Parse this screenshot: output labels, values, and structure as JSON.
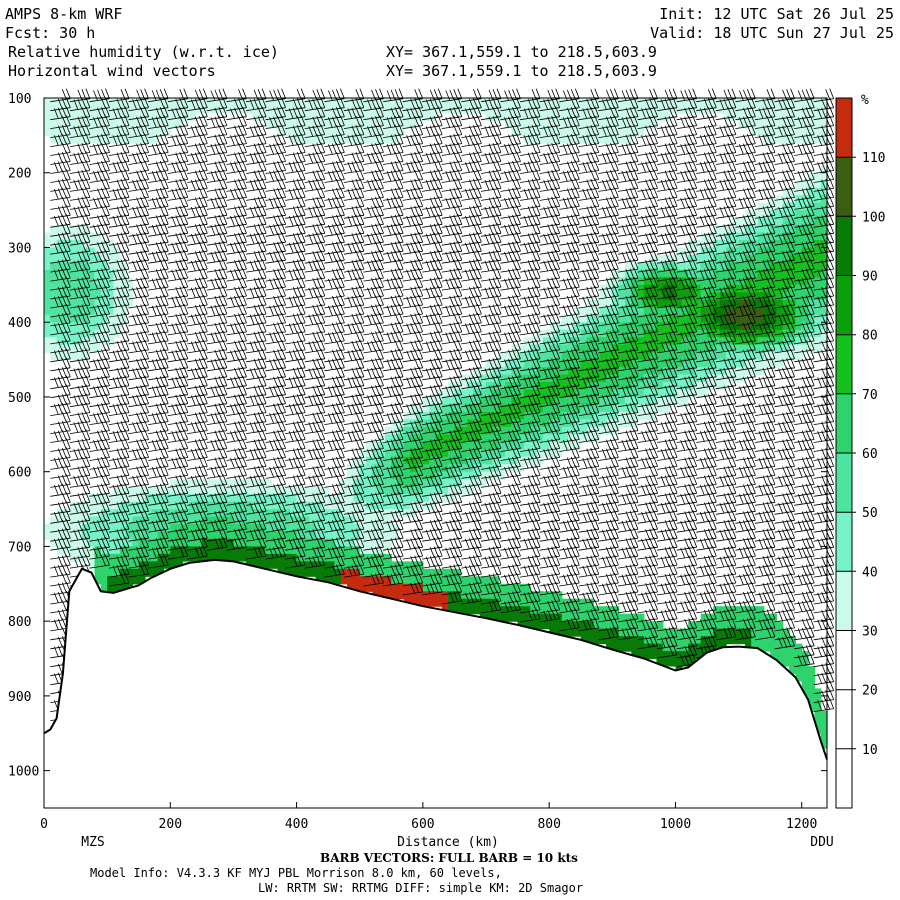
{
  "header": {
    "model": "AMPS 8-km WRF",
    "fcst": "Fcst:    30 h",
    "field1": "Relative humidity (w.r.t. ice)",
    "field2": "Horizontal wind vectors",
    "init": "Init: 12 UTC Sat 26 Jul 25",
    "valid": "Valid: 18 UTC Sun 27 Jul 25",
    "xy1": "XY= 367.1,559.1 to 218.5,603.9",
    "xy2": "XY= 367.1,559.1 to 218.5,603.9"
  },
  "chart_data": {
    "type": "heatmap",
    "title": "Relative humidity (w.r.t. ice)",
    "xlabel": "Distance (km)",
    "ylabel": "",
    "xlim": [
      0,
      1240
    ],
    "ylim": [
      1050,
      100
    ],
    "x_ticks": [
      0,
      200,
      400,
      600,
      800,
      1000,
      1200
    ],
    "y_ticks": [
      100,
      200,
      300,
      400,
      500,
      600,
      700,
      800,
      900,
      1000
    ],
    "x_endpoint_labels": [
      "MZS",
      "DDU"
    ],
    "colorbar": {
      "unit": "%",
      "boundaries": [
        0,
        10,
        20,
        30,
        40,
        50,
        60,
        70,
        80,
        90,
        100,
        110,
        120
      ],
      "labels": [
        "10",
        "20",
        "30",
        "40",
        "50",
        "60",
        "70",
        "80",
        "90",
        "100",
        "110"
      ],
      "colors": [
        "#ffffff",
        "#ffffff",
        "#ffffff",
        "#cbfbe8",
        "#76f4c7",
        "#4ee4a0",
        "#2fd36d",
        "#17c021",
        "#0d9e0d",
        "#087a08",
        "#3b5e12",
        "#c42b0f"
      ]
    },
    "terrain_surface_pressure": [
      [
        0,
        950
      ],
      [
        10,
        945
      ],
      [
        20,
        930
      ],
      [
        30,
        870
      ],
      [
        40,
        760
      ],
      [
        60,
        730
      ],
      [
        75,
        735
      ],
      [
        90,
        760
      ],
      [
        110,
        762
      ],
      [
        130,
        757
      ],
      [
        150,
        752
      ],
      [
        170,
        742
      ],
      [
        200,
        730
      ],
      [
        230,
        722
      ],
      [
        270,
        718
      ],
      [
        300,
        720
      ],
      [
        350,
        730
      ],
      [
        400,
        740
      ],
      [
        450,
        748
      ],
      [
        500,
        760
      ],
      [
        550,
        770
      ],
      [
        600,
        780
      ],
      [
        650,
        788
      ],
      [
        700,
        796
      ],
      [
        750,
        805
      ],
      [
        800,
        815
      ],
      [
        850,
        825
      ],
      [
        900,
        838
      ],
      [
        950,
        850
      ],
      [
        975,
        858
      ],
      [
        1000,
        866
      ],
      [
        1020,
        862
      ],
      [
        1050,
        842
      ],
      [
        1075,
        835
      ],
      [
        1100,
        834
      ],
      [
        1130,
        836
      ],
      [
        1160,
        852
      ],
      [
        1190,
        875
      ],
      [
        1210,
        905
      ],
      [
        1230,
        960
      ],
      [
        1240,
        985
      ]
    ],
    "moist_regions": [
      {
        "description": "upper-level moist band",
        "x_range_km": [
          0,
          1240
        ],
        "p_range_hPa": [
          100,
          150
        ],
        "rh_pct": [
          30,
          40
        ]
      },
      {
        "description": "upstream moist column near MZS",
        "x_range_km": [
          0,
          160
        ],
        "p_range_hPa": [
          240,
          470
        ],
        "rh_pct": [
          40,
          60
        ]
      },
      {
        "description": "low-level moist layer above terrain",
        "x_range_km": [
          40,
          700
        ],
        "p_range_hPa": [
          590,
          760
        ],
        "rh_pct": [
          40,
          70
        ]
      },
      {
        "description": "thin near-surface saturated layer",
        "x_range_km": [
          120,
          1100
        ],
        "p_range_hPa": [
          715,
          840
        ],
        "rh_pct": [
          80,
          115
        ]
      },
      {
        "description": "tilted moist plume",
        "x_range_km": [
          380,
          1240
        ],
        "p_range_hPa": [
          240,
          680
        ],
        "rh_pct": [
          40,
          80
        ]
      },
      {
        "description": "plume core",
        "x_range_km": [
          880,
          1240
        ],
        "p_range_hPa": [
          330,
          450
        ],
        "rh_pct": [
          90,
          110
        ]
      }
    ],
    "wind_barb_note": "BARB VECTORS: FULL BARB = 10 kts"
  },
  "footer": {
    "barb": "BARB VECTORS:  FULL BARB = 10 kts",
    "model_info": "Model Info: V4.3.3   KF      MYJ PBL  Morrison         8.0 km,  60 levels,",
    "physics": "LW: RRTM SW: RRTMG   DIFF: simple KM: 2D Smagor"
  }
}
